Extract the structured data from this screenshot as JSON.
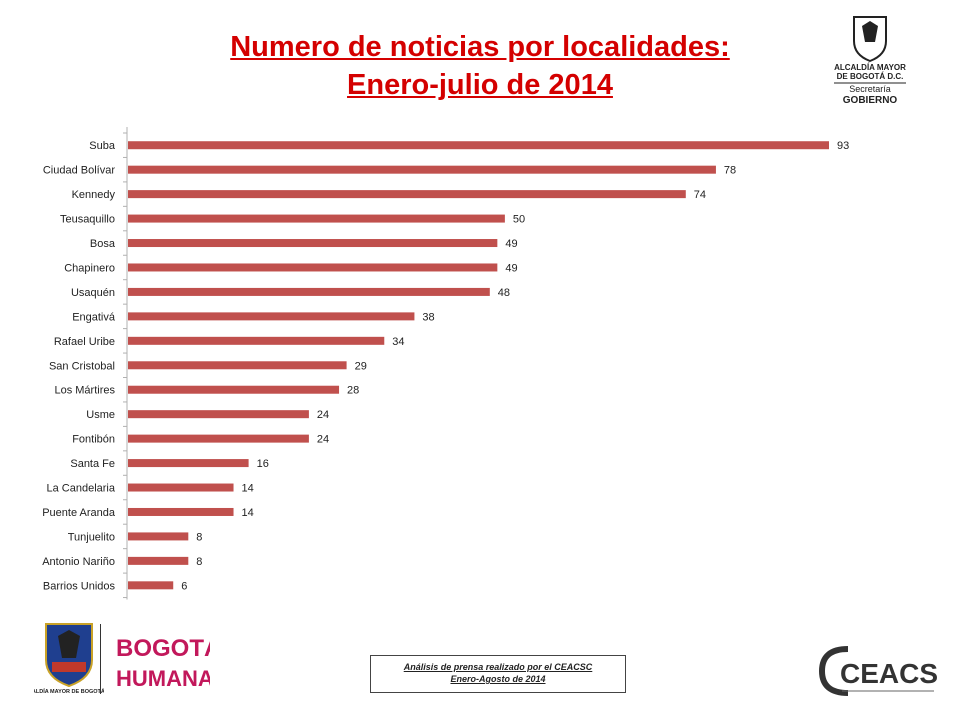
{
  "title": {
    "line1": "Numero de noticias por localidades:",
    "line2": "Enero-julio de 2014"
  },
  "logo_top": {
    "line1": "ALCALDÍA MAYOR",
    "line2": "DE BOGOTÁ D.C.",
    "line3": "Secretaría",
    "line4": "GOBIERNO"
  },
  "footer": {
    "line1": "Análisis de prensa realizado por el CEACSC",
    "line2": "Enero-Agosto de 2014"
  },
  "logos": {
    "left": "ALCALDÍA MAYOR DE BOGOTÁ D.C.",
    "mid_top": "BOGOTÁ",
    "mid_bottom": "HUMANA",
    "right": "CEACSC"
  },
  "colors": {
    "bar": "#c0504d",
    "title": "#d40000"
  },
  "chart_data": {
    "type": "bar",
    "orientation": "horizontal",
    "categories": [
      "Suba",
      "Ciudad Bolívar",
      "Kennedy",
      "Teusaquillo",
      "Bosa",
      "Chapinero",
      "Usaquén",
      "Engativá",
      "Rafael Uribe",
      "San Cristobal",
      "Los Mártires",
      "Usme",
      "Fontibón",
      "Santa Fe",
      "La Candelaria",
      "Puente Aranda",
      "Tunjuelito",
      "Antonio Nariño",
      "Barrios Unidos"
    ],
    "values": [
      93,
      78,
      74,
      50,
      49,
      49,
      48,
      38,
      34,
      29,
      28,
      24,
      24,
      16,
      14,
      14,
      8,
      8,
      6
    ],
    "data_labels": true,
    "grid": false,
    "xlim": [
      0,
      93
    ]
  }
}
